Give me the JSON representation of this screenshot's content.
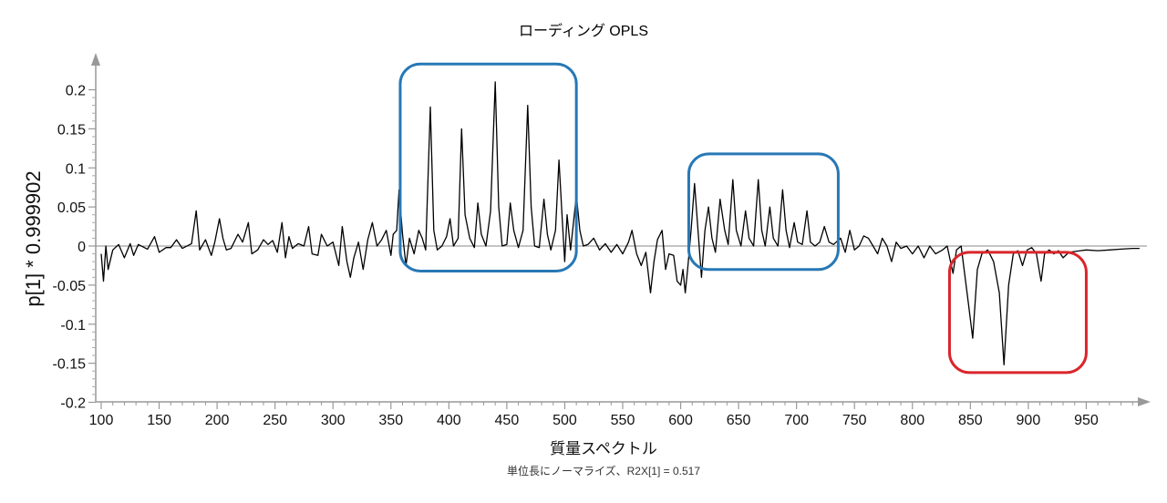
{
  "chart_data": {
    "type": "line",
    "title": "ローディング OPLS",
    "xlabel": "質量スペクトル",
    "ylabel": "p[1] * 0.999902",
    "subtitle": "単位長にノーマライズ、R2X[1] = 0.517",
    "xlim": [
      100,
      1000
    ],
    "ylim": [
      -0.2,
      0.22
    ],
    "x_ticks": [
      "100",
      "150",
      "200",
      "250",
      "300",
      "350",
      "400",
      "450",
      "500",
      "550",
      "600",
      "650",
      "700",
      "750",
      "800",
      "850",
      "900",
      "950"
    ],
    "y_ticks": [
      "0.2",
      "0.15",
      "0.1",
      "0.05",
      "0",
      "-0.05",
      "-0.1",
      "-0.15",
      "-0.2"
    ],
    "grid": false,
    "zero_line": true,
    "series": [
      {
        "color": "#000000",
        "points": [
          [
            100,
            -0.01
          ],
          [
            102,
            -0.045
          ],
          [
            104,
            0.0
          ],
          [
            106,
            -0.03
          ],
          [
            110,
            -0.005
          ],
          [
            115,
            0.002
          ],
          [
            120,
            -0.015
          ],
          [
            125,
            0.003
          ],
          [
            128,
            -0.012
          ],
          [
            132,
            0.002
          ],
          [
            140,
            -0.004
          ],
          [
            146,
            0.012
          ],
          [
            150,
            -0.008
          ],
          [
            156,
            -0.002
          ],
          [
            160,
            -0.002
          ],
          [
            165,
            0.008
          ],
          [
            170,
            -0.003
          ],
          [
            178,
            0.003
          ],
          [
            182,
            0.045
          ],
          [
            185,
            -0.005
          ],
          [
            190,
            0.008
          ],
          [
            195,
            -0.012
          ],
          [
            198,
            0.005
          ],
          [
            202,
            0.035
          ],
          [
            205,
            0.01
          ],
          [
            208,
            -0.005
          ],
          [
            212,
            -0.003
          ],
          [
            218,
            0.015
          ],
          [
            222,
            0.005
          ],
          [
            227,
            0.03
          ],
          [
            230,
            -0.01
          ],
          [
            235,
            -0.005
          ],
          [
            240,
            0.008
          ],
          [
            244,
            0.002
          ],
          [
            248,
            0.007
          ],
          [
            252,
            -0.008
          ],
          [
            256,
            0.03
          ],
          [
            259,
            -0.015
          ],
          [
            262,
            0.012
          ],
          [
            265,
            -0.003
          ],
          [
            270,
            0.003
          ],
          [
            275,
            0.0
          ],
          [
            279,
            0.025
          ],
          [
            282,
            -0.01
          ],
          [
            287,
            -0.012
          ],
          [
            290,
            0.015
          ],
          [
            295,
            0.0
          ],
          [
            300,
            0.005
          ],
          [
            305,
            -0.025
          ],
          [
            308,
            0.025
          ],
          [
            312,
            -0.02
          ],
          [
            315,
            -0.04
          ],
          [
            318,
            -0.015
          ],
          [
            322,
            0.005
          ],
          [
            326,
            -0.03
          ],
          [
            330,
            0.008
          ],
          [
            334,
            0.03
          ],
          [
            338,
            0.0
          ],
          [
            342,
            0.008
          ],
          [
            346,
            0.02
          ],
          [
            350,
            -0.012
          ],
          [
            352,
            0.015
          ],
          [
            355,
            0.02
          ],
          [
            357,
            0.072
          ],
          [
            360,
            0.015
          ],
          [
            363,
            -0.025
          ],
          [
            366,
            0.01
          ],
          [
            370,
            -0.01
          ],
          [
            374,
            0.02
          ],
          [
            377,
            0.01
          ],
          [
            380,
            -0.005
          ],
          [
            384,
            0.178
          ],
          [
            387,
            0.02
          ],
          [
            390,
            -0.005
          ],
          [
            394,
            0.0
          ],
          [
            398,
            0.012
          ],
          [
            401,
            0.035
          ],
          [
            404,
            0.0
          ],
          [
            408,
            0.01
          ],
          [
            411,
            0.15
          ],
          [
            414,
            0.04
          ],
          [
            418,
            0.01
          ],
          [
            422,
            -0.002
          ],
          [
            425,
            0.055
          ],
          [
            428,
            0.015
          ],
          [
            432,
            0.0
          ],
          [
            436,
            0.045
          ],
          [
            440,
            0.21
          ],
          [
            443,
            0.05
          ],
          [
            446,
            0.0
          ],
          [
            450,
            0.002
          ],
          [
            453,
            0.055
          ],
          [
            456,
            0.02
          ],
          [
            460,
            -0.002
          ],
          [
            464,
            0.02
          ],
          [
            468,
            0.18
          ],
          [
            471,
            0.05
          ],
          [
            474,
            0.0
          ],
          [
            478,
            -0.002
          ],
          [
            482,
            0.06
          ],
          [
            485,
            0.015
          ],
          [
            488,
            -0.005
          ],
          [
            492,
            0.02
          ],
          [
            495,
            0.11
          ],
          [
            498,
            0.03
          ],
          [
            500,
            -0.02
          ],
          [
            502,
            0.04
          ],
          [
            505,
            -0.005
          ],
          [
            510,
            0.065
          ],
          [
            513,
            0.02
          ],
          [
            516,
            0.0
          ],
          [
            520,
            0.002
          ],
          [
            525,
            0.01
          ],
          [
            530,
            -0.005
          ],
          [
            535,
            0.003
          ],
          [
            540,
            -0.008
          ],
          [
            545,
            0.002
          ],
          [
            550,
            -0.01
          ],
          [
            555,
            0.005
          ],
          [
            558,
            0.02
          ],
          [
            562,
            -0.01
          ],
          [
            566,
            -0.025
          ],
          [
            570,
            -0.008
          ],
          [
            574,
            -0.06
          ],
          [
            577,
            -0.02
          ],
          [
            580,
            0.008
          ],
          [
            584,
            0.02
          ],
          [
            587,
            -0.03
          ],
          [
            590,
            -0.01
          ],
          [
            594,
            -0.012
          ],
          [
            597,
            -0.045
          ],
          [
            600,
            -0.05
          ],
          [
            602,
            -0.03
          ],
          [
            604,
            -0.06
          ],
          [
            606,
            -0.03
          ],
          [
            609,
            0.02
          ],
          [
            612,
            0.08
          ],
          [
            615,
            0.02
          ],
          [
            618,
            -0.04
          ],
          [
            621,
            0.02
          ],
          [
            624,
            0.05
          ],
          [
            627,
            0.01
          ],
          [
            630,
            -0.008
          ],
          [
            634,
            0.06
          ],
          [
            638,
            0.02
          ],
          [
            641,
            0.002
          ],
          [
            645,
            0.085
          ],
          [
            648,
            0.02
          ],
          [
            652,
            0.0
          ],
          [
            656,
            0.045
          ],
          [
            659,
            0.01
          ],
          [
            663,
            0.0
          ],
          [
            667,
            0.085
          ],
          [
            670,
            0.02
          ],
          [
            673,
            0.0
          ],
          [
            677,
            0.05
          ],
          [
            680,
            0.01
          ],
          [
            684,
            0.0
          ],
          [
            688,
            0.072
          ],
          [
            691,
            0.02
          ],
          [
            694,
            -0.002
          ],
          [
            698,
            0.03
          ],
          [
            701,
            0.005
          ],
          [
            705,
            0.002
          ],
          [
            709,
            0.045
          ],
          [
            712,
            0.005
          ],
          [
            716,
            0.0
          ],
          [
            720,
            0.005
          ],
          [
            724,
            0.025
          ],
          [
            728,
            0.005
          ],
          [
            732,
            0.002
          ],
          [
            738,
            0.01
          ],
          [
            742,
            -0.008
          ],
          [
            746,
            0.02
          ],
          [
            750,
            -0.005
          ],
          [
            754,
            0.0
          ],
          [
            758,
            0.013
          ],
          [
            762,
            0.01
          ],
          [
            766,
            0.0
          ],
          [
            770,
            -0.01
          ],
          [
            774,
            0.01
          ],
          [
            778,
            0.0
          ],
          [
            782,
            -0.02
          ],
          [
            786,
            0.005
          ],
          [
            790,
            -0.003
          ],
          [
            795,
            0.0
          ],
          [
            800,
            -0.01
          ],
          [
            805,
            0.0
          ],
          [
            810,
            -0.015
          ],
          [
            815,
            0.0
          ],
          [
            820,
            -0.01
          ],
          [
            826,
            -0.005
          ],
          [
            830,
            0.0
          ],
          [
            835,
            -0.035
          ],
          [
            838,
            -0.005
          ],
          [
            842,
            0.0
          ],
          [
            848,
            -0.07
          ],
          [
            852,
            -0.118
          ],
          [
            856,
            -0.03
          ],
          [
            860,
            -0.01
          ],
          [
            865,
            -0.005
          ],
          [
            870,
            -0.02
          ],
          [
            875,
            -0.06
          ],
          [
            879,
            -0.152
          ],
          [
            883,
            -0.05
          ],
          [
            887,
            -0.01
          ],
          [
            891,
            -0.006
          ],
          [
            895,
            -0.025
          ],
          [
            899,
            -0.005
          ],
          [
            903,
            -0.002
          ],
          [
            907,
            -0.01
          ],
          [
            911,
            -0.045
          ],
          [
            914,
            -0.01
          ],
          [
            918,
            -0.005
          ],
          [
            922,
            -0.01
          ],
          [
            926,
            -0.006
          ],
          [
            930,
            -0.015
          ],
          [
            935,
            -0.008
          ],
          [
            940,
            -0.007
          ],
          [
            945,
            -0.006
          ],
          [
            950,
            -0.005
          ],
          [
            960,
            -0.006
          ],
          [
            970,
            -0.005
          ],
          [
            980,
            -0.004
          ],
          [
            990,
            -0.003
          ],
          [
            996,
            -0.003
          ]
        ]
      }
    ],
    "highlight_boxes": [
      {
        "color": "#2878b5",
        "x": [
          358,
          510
        ],
        "y": [
          -0.032,
          0.233
        ]
      },
      {
        "color": "#2878b5",
        "x": [
          607,
          736
        ],
        "y": [
          -0.03,
          0.118
        ]
      },
      {
        "color": "#d9262c",
        "x": [
          832,
          950
        ],
        "y": [
          -0.162,
          -0.008
        ]
      }
    ]
  }
}
